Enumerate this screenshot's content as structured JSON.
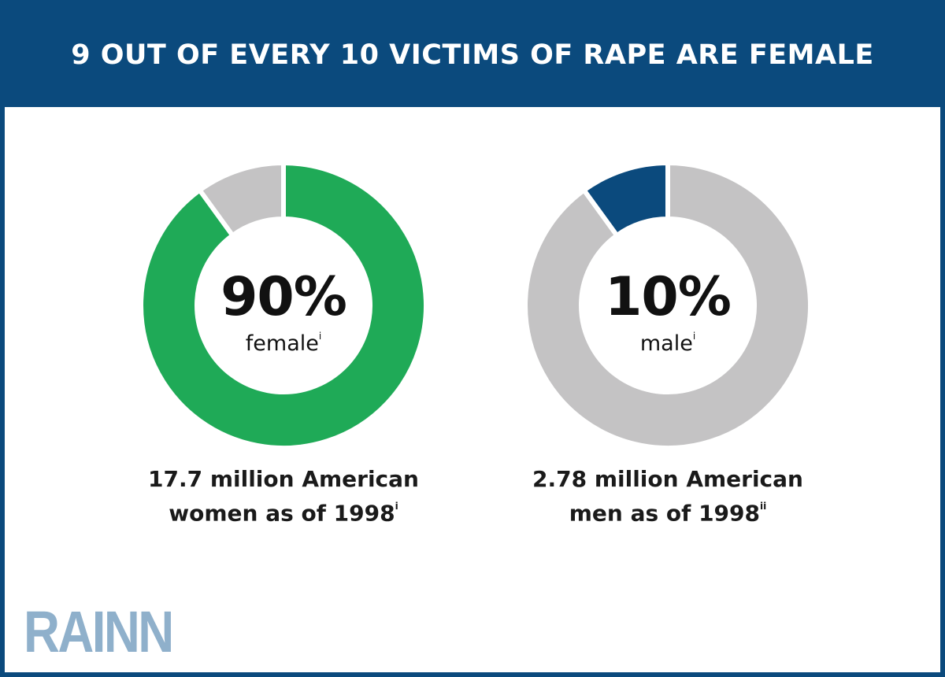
{
  "title": "9 OUT OF EVERY 10 VICTIMS OF RAPE ARE FEMALE",
  "colors": {
    "header": "#0b4a7d",
    "green": "#1faa57",
    "gray": "#c4c3c4",
    "navy": "#0b4a7d",
    "logo": "#8fb0cb"
  },
  "chart_data": [
    {
      "type": "pie",
      "style": "donut",
      "slices": [
        {
          "label": "female",
          "value": 90,
          "color": "#1faa57"
        },
        {
          "label": "male",
          "value": 10,
          "color": "#c4c3c4"
        }
      ],
      "center_value": "90%",
      "center_label": "female",
      "center_label_sup": "i",
      "caption_line1": "17.7 million American",
      "caption_line2": "women as of 1998",
      "caption_sup": "i"
    },
    {
      "type": "pie",
      "style": "donut",
      "slices": [
        {
          "label": "female",
          "value": 90,
          "color": "#c4c3c4"
        },
        {
          "label": "male",
          "value": 10,
          "color": "#0b4a7d"
        }
      ],
      "center_value": "10%",
      "center_label": "male",
      "center_label_sup": "i",
      "caption_line1": "2.78 million American",
      "caption_line2": "men as of 1998",
      "caption_sup": "ii"
    }
  ],
  "logo": "RAINN"
}
